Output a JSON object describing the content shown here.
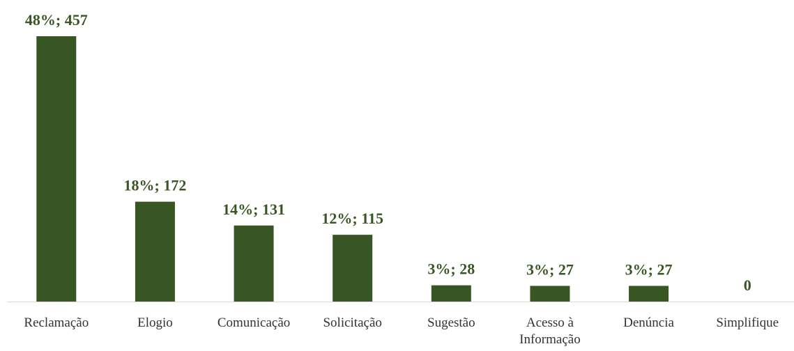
{
  "chart_data": {
    "type": "bar",
    "categories": [
      "Reclamação",
      "Elogio",
      "Comunicação",
      "Solicitação",
      "Sugestão",
      "Acesso à Informação",
      "Denúncia",
      "Simplifique"
    ],
    "values": [
      457,
      172,
      131,
      115,
      28,
      27,
      27,
      0
    ],
    "value_labels": [
      "48%; 457",
      "18%; 172",
      "14%; 131",
      "12%; 115",
      "3%; 28",
      "3%; 27",
      "3%; 27",
      "0"
    ],
    "color": "#375623"
  }
}
